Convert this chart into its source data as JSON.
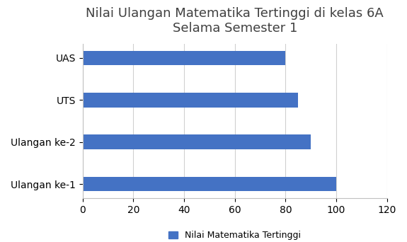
{
  "title": "Nilai Ulangan Matematika Tertinggi di kelas 6A\nSelama Semester 1",
  "categories": [
    "Ulangan ke-1",
    "Ulangan ke-2",
    "UTS",
    "UAS"
  ],
  "values": [
    100,
    90,
    85,
    80
  ],
  "bar_color": "#4472C4",
  "xlim": [
    0,
    120
  ],
  "xticks": [
    0,
    20,
    40,
    60,
    80,
    100,
    120
  ],
  "legend_label": "Nilai Matematika Tertinggi",
  "title_fontsize": 13,
  "tick_fontsize": 10,
  "legend_fontsize": 9,
  "bar_height": 0.35,
  "background_color": "#ffffff",
  "title_color": "#404040",
  "grid_color": "#D0D0D0"
}
